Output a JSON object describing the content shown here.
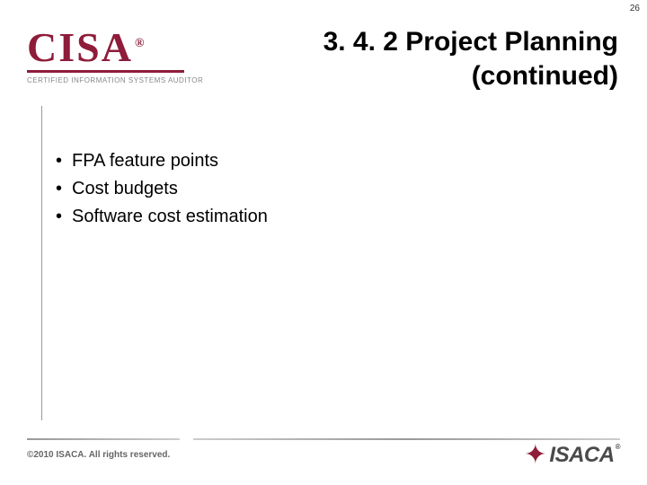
{
  "page_number": "26",
  "logo_cisa": {
    "brand": "CISA",
    "registered": "®",
    "tagline": "CERTIFIED INFORMATION SYSTEMS AUDITOR",
    "brand_color": "#8e1c3a"
  },
  "title": {
    "line1": "3. 4. 2 Project Planning",
    "line2": "(continued)",
    "fontsize": 30,
    "color": "#000000"
  },
  "bullets": [
    "FPA feature points",
    "Cost budgets",
    "Software cost estimation"
  ],
  "footer": {
    "copyright": "©2010 ISACA. All rights reserved.",
    "isaca_brand": "ISACA",
    "isaca_reg": "®"
  },
  "colors": {
    "background": "#ffffff",
    "accent": "#8e1c3a",
    "text": "#000000",
    "muted": "#888888",
    "rule": "#999999"
  }
}
